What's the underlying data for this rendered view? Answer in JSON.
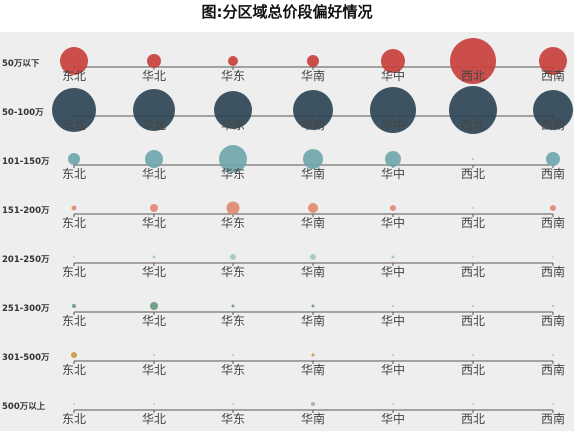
{
  "title": "图:分区域总价段偏好情况",
  "chart_data": {
    "type": "scatter",
    "title": "图:分区域总价段偏好情况",
    "categories": [
      "东北",
      "华北",
      "华东",
      "华南",
      "华中",
      "西北",
      "西南"
    ],
    "series": [
      {
        "name": "50万以下",
        "color": "#c9403d",
        "values": [
          14,
          7,
          5,
          6,
          12,
          23,
          14
        ]
      },
      {
        "name": "50-100万",
        "color": "#2e4555",
        "values": [
          22,
          21,
          19,
          20,
          23,
          24,
          20
        ]
      },
      {
        "name": "101-150万",
        "color": "#6fa7ad",
        "values": [
          6,
          9,
          14,
          10,
          8,
          0.5,
          7
        ]
      },
      {
        "name": "151-200万",
        "color": "#df8a6e",
        "values": [
          2.5,
          4,
          6.5,
          5,
          3,
          0.3,
          3
        ]
      },
      {
        "name": "201-250万",
        "color": "#9dcbbc",
        "values": [
          0.5,
          1.5,
          3,
          3,
          1.5,
          0.3,
          0.8
        ]
      },
      {
        "name": "251-300万",
        "color": "#6a9a7e",
        "values": [
          2,
          4,
          1.5,
          1.5,
          0.3,
          0.3,
          0.3
        ]
      },
      {
        "name": "301-500万",
        "color": "#c89a3f",
        "values": [
          3,
          0.3,
          0.8,
          1.5,
          0.3,
          0.3,
          0.3
        ]
      },
      {
        "name": "500万以上",
        "color": "#aaaaaa",
        "values": [
          0.3,
          0.3,
          0.5,
          2,
          0.3,
          0.3,
          0.3
        ]
      }
    ]
  }
}
